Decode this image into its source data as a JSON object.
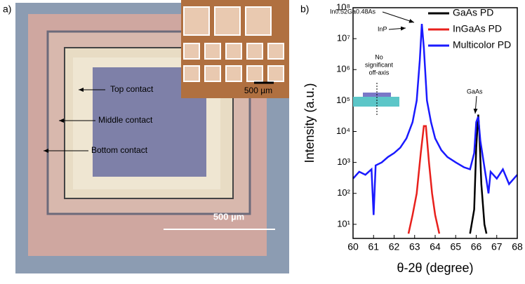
{
  "panel_a": {
    "label": "a)",
    "annotations": [
      "Top contact",
      "Middle contact",
      "Bottom contact"
    ],
    "scale_bar": "500 µm",
    "inset_scale_bar": "500 µm"
  },
  "chart_data": {
    "type": "line",
    "label": "b)",
    "xlabel": "θ-2θ (degree)",
    "ylabel": "Intensity (a.u.)",
    "yscale": "log",
    "legend": "upper right",
    "xlim": [
      60,
      68
    ],
    "xticks": [
      60,
      61,
      62,
      63,
      64,
      65,
      66,
      67,
      68
    ],
    "ylim": [
      3.5,
      100000000
    ],
    "yticks": [
      {
        "value": 10,
        "label": "10¹"
      },
      {
        "value": 100,
        "label": "10²"
      },
      {
        "value": 1000,
        "label": "10³"
      },
      {
        "value": 10000,
        "label": "10⁴"
      },
      {
        "value": 100000,
        "label": "10⁵"
      },
      {
        "value": 1000000,
        "label": "10⁶"
      },
      {
        "value": 10000000,
        "label": "10⁷"
      },
      {
        "value": 100000000,
        "label": "10⁸"
      }
    ],
    "annotations": [
      "In0.52Ga0.48As",
      "InP",
      "GaAs"
    ],
    "inset_text": [
      "No",
      "significant",
      "off-axis"
    ],
    "series": [
      {
        "name": "GaAs PD",
        "color": "#000000",
        "x": [
          65.7,
          65.9,
          66.0,
          66.1,
          66.15,
          66.25,
          66.4,
          66.5
        ],
        "values": [
          5,
          30,
          3000,
          35000,
          10000,
          200,
          10,
          5
        ]
      },
      {
        "name": "InGaAs PD",
        "color": "#e8201c",
        "x": [
          62.7,
          62.9,
          63.1,
          63.3,
          63.45,
          63.55,
          63.7,
          63.85,
          64.0,
          64.2
        ],
        "values": [
          5,
          20,
          100,
          2000,
          15000,
          15000,
          1000,
          100,
          20,
          5
        ]
      },
      {
        "name": "Multicolor PD",
        "color": "#1a1aff",
        "x": [
          60,
          60.3,
          60.6,
          60.9,
          61.0,
          61.1,
          61.4,
          61.7,
          62.0,
          62.3,
          62.6,
          62.9,
          63.1,
          63.25,
          63.35,
          63.45,
          63.6,
          63.8,
          64.0,
          64.3,
          64.6,
          65.0,
          65.4,
          65.7,
          65.9,
          66.0,
          66.1,
          66.2,
          66.4,
          66.6,
          66.7,
          67.0,
          67.3,
          67.6,
          68.0
        ],
        "values": [
          300,
          500,
          400,
          600,
          20,
          800,
          1000,
          1500,
          2000,
          3000,
          6000,
          20000,
          100000,
          2000000,
          30000000,
          5000000,
          100000,
          20000,
          6000,
          2500,
          1500,
          1000,
          700,
          600,
          2000,
          20000,
          30000,
          5000,
          700,
          100,
          500,
          300,
          600,
          200,
          400
        ]
      }
    ]
  }
}
